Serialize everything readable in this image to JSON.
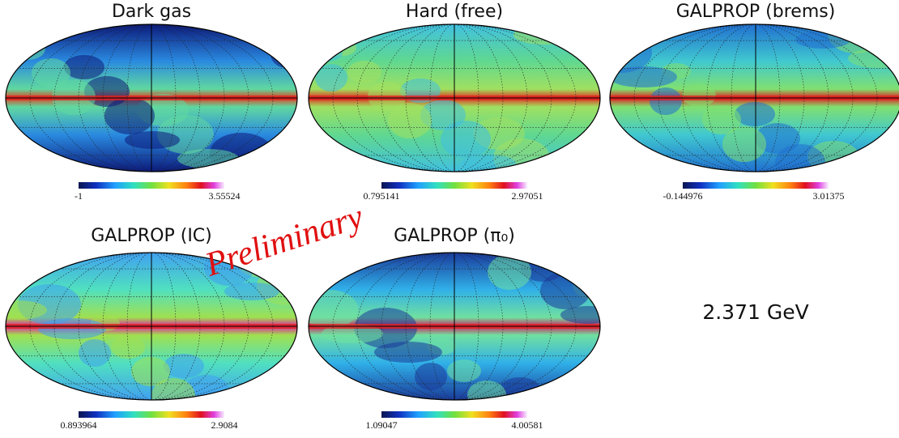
{
  "panels": [
    {
      "title": "Dark gas",
      "min": "-1",
      "max": "3.55524"
    },
    {
      "title": "Hard (free)",
      "min": "0.795141",
      "max": "2.97051"
    },
    {
      "title": "GALPROP (brems)",
      "min": "-0.144976",
      "max": "3.01375"
    },
    {
      "title": "GALPROP (IC)",
      "min": "0.893964",
      "max": "2.9084"
    },
    {
      "title": "GALPROP (π₀)",
      "min": "1.09047",
      "max": "4.00581"
    }
  ],
  "watermark": "Preliminary",
  "energy": "2.371 GeV"
}
